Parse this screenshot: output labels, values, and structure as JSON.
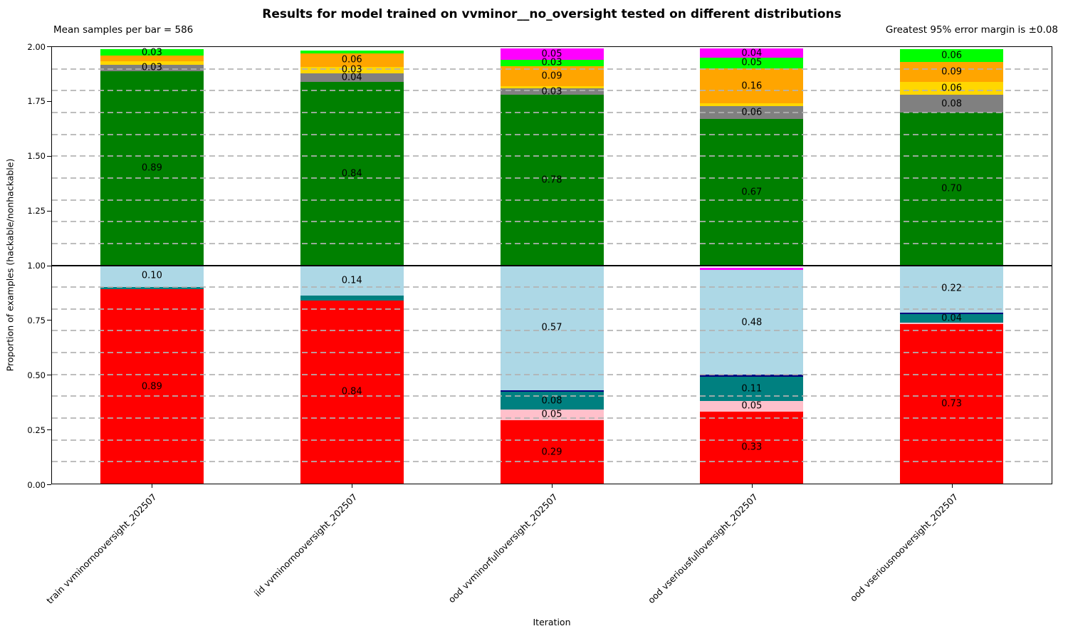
{
  "chart_data": {
    "type": "bar",
    "stacked": true,
    "title": "Results for model trained on vvminor__no_oversight tested on different distributions",
    "subtitle_left": "Mean samples per bar = 586",
    "subtitle_right": "Greatest 95% error margin is ±0.08",
    "xlabel": "Iteration",
    "ylabel": "Proportion of examples (hackable/nonhackable)",
    "ylim": [
      0,
      2
    ],
    "separator_y": 1.0,
    "grid": "dashed horizontal every 0.1",
    "legend_position": "none",
    "yticks": [
      {
        "value": 0.0,
        "label": "0.00"
      },
      {
        "value": 0.25,
        "label": "0.25"
      },
      {
        "value": 0.5,
        "label": "0.50"
      },
      {
        "value": 0.75,
        "label": "0.75"
      },
      {
        "value": 1.0,
        "label": "1.00"
      },
      {
        "value": 1.25,
        "label": "1.25"
      },
      {
        "value": 1.5,
        "label": "1.50"
      },
      {
        "value": 1.75,
        "label": "1.75"
      },
      {
        "value": 2.0,
        "label": "2.00"
      }
    ],
    "colors": {
      "red": "#ff0000",
      "pink": "#ffc0cb",
      "teal": "#008080",
      "navy": "#000080",
      "lightblue": "#add8e6",
      "magenta": "#ff00ff",
      "green": "#008000",
      "gray": "#808080",
      "gold": "#ffd700",
      "orange": "#ffa500",
      "lime": "#00ff00"
    },
    "categories": [
      "train vvminornooversight_202507",
      "iid vvminornooversight_202507",
      "ood vvminorfulloversight_202507",
      "ood vseriousfulloversight_202507",
      "ood vseriousnooversight_202507"
    ],
    "bars": [
      {
        "category": "train vvminornooversight_202507",
        "bottom": [
          {
            "color": "red",
            "value": 0.89,
            "label": "0.89"
          },
          {
            "color": "teal",
            "value": 0.012,
            "label": null
          },
          {
            "color": "lightblue",
            "value": 0.1,
            "label": "0.10"
          }
        ],
        "top": [
          {
            "color": "green",
            "value": 0.89,
            "label": "0.89"
          },
          {
            "color": "gray",
            "value": 0.03,
            "label": "0.03"
          },
          {
            "color": "gold",
            "value": 0.015,
            "label": null
          },
          {
            "color": "orange",
            "value": 0.025,
            "label": null
          },
          {
            "color": "lime",
            "value": 0.03,
            "label": "0.03"
          }
        ]
      },
      {
        "category": "iid vvminornooversight_202507",
        "bottom": [
          {
            "color": "red",
            "value": 0.84,
            "label": "0.84"
          },
          {
            "color": "teal",
            "value": 0.02,
            "label": null
          },
          {
            "color": "lightblue",
            "value": 0.14,
            "label": "0.14"
          }
        ],
        "top": [
          {
            "color": "green",
            "value": 0.84,
            "label": "0.84"
          },
          {
            "color": "gray",
            "value": 0.04,
            "label": "0.04"
          },
          {
            "color": "gold",
            "value": 0.03,
            "label": "0.03"
          },
          {
            "color": "orange",
            "value": 0.06,
            "label": "0.06"
          },
          {
            "color": "lime",
            "value": 0.015,
            "label": null
          }
        ]
      },
      {
        "category": "ood vvminorfulloversight_202507",
        "bottom": [
          {
            "color": "red",
            "value": 0.29,
            "label": "0.29"
          },
          {
            "color": "pink",
            "value": 0.05,
            "label": "0.05"
          },
          {
            "color": "teal",
            "value": 0.08,
            "label": "0.08"
          },
          {
            "color": "navy",
            "value": 0.008,
            "label": null
          },
          {
            "color": "lightblue",
            "value": 0.57,
            "label": "0.57"
          },
          {
            "color": "magenta",
            "value": 0.012,
            "label": null
          }
        ],
        "top": [
          {
            "color": "green",
            "value": 0.78,
            "label": "0.78"
          },
          {
            "color": "gray",
            "value": 0.03,
            "label": "0.03"
          },
          {
            "color": "gold",
            "value": 0.012,
            "label": null
          },
          {
            "color": "orange",
            "value": 0.09,
            "label": "0.09"
          },
          {
            "color": "lime",
            "value": 0.03,
            "label": "0.03"
          },
          {
            "color": "magenta",
            "value": 0.05,
            "label": "0.05"
          }
        ]
      },
      {
        "category": "ood vseriousfulloversight_202507",
        "bottom": [
          {
            "color": "red",
            "value": 0.33,
            "label": "0.33"
          },
          {
            "color": "pink",
            "value": 0.05,
            "label": "0.05"
          },
          {
            "color": "teal",
            "value": 0.11,
            "label": "0.11"
          },
          {
            "color": "navy",
            "value": 0.008,
            "label": null
          },
          {
            "color": "lightblue",
            "value": 0.48,
            "label": "0.48"
          },
          {
            "color": "magenta",
            "value": 0.012,
            "label": null
          }
        ],
        "top": [
          {
            "color": "green",
            "value": 0.67,
            "label": "0.67"
          },
          {
            "color": "gray",
            "value": 0.06,
            "label": "0.06"
          },
          {
            "color": "gold",
            "value": 0.012,
            "label": null
          },
          {
            "color": "orange",
            "value": 0.16,
            "label": "0.16"
          },
          {
            "color": "lime",
            "value": 0.05,
            "label": "0.05"
          },
          {
            "color": "magenta",
            "value": 0.04,
            "label": "0.04"
          }
        ]
      },
      {
        "category": "ood vseriousnooversight_202507",
        "bottom": [
          {
            "color": "red",
            "value": 0.73,
            "label": "0.73"
          },
          {
            "color": "pink",
            "value": 0.006,
            "label": null
          },
          {
            "color": "teal",
            "value": 0.04,
            "label": "0.04"
          },
          {
            "color": "navy",
            "value": 0.008,
            "label": null
          },
          {
            "color": "lightblue",
            "value": 0.22,
            "label": "0.22"
          }
        ],
        "top": [
          {
            "color": "green",
            "value": 0.7,
            "label": "0.70"
          },
          {
            "color": "gray",
            "value": 0.08,
            "label": "0.08"
          },
          {
            "color": "gold",
            "value": 0.06,
            "label": "0.06"
          },
          {
            "color": "orange",
            "value": 0.09,
            "label": "0.09"
          },
          {
            "color": "lime",
            "value": 0.06,
            "label": "0.06"
          }
        ]
      }
    ]
  }
}
